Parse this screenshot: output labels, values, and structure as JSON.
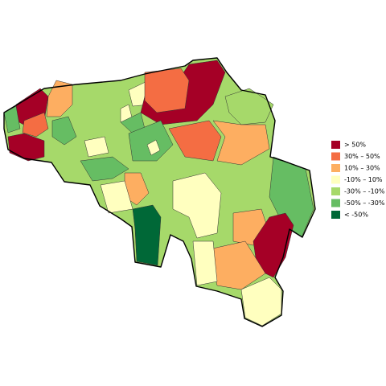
{
  "legend": {
    "items": [
      {
        "label": "> 50%",
        "color": "#a50026"
      },
      {
        "label": "30%  –  50%",
        "color": "#f46d43"
      },
      {
        "label": "10%  –  30%",
        "color": "#fdae61"
      },
      {
        "label": "-10%  –  10%",
        "color": "#ffffbf"
      },
      {
        "label": "-30%  –  -10%",
        "color": "#a6d96a"
      },
      {
        "label": "-50%  –  -30%",
        "color": "#66bd63"
      },
      {
        "label": "< -50%",
        "color": "#006837"
      }
    ]
  }
}
